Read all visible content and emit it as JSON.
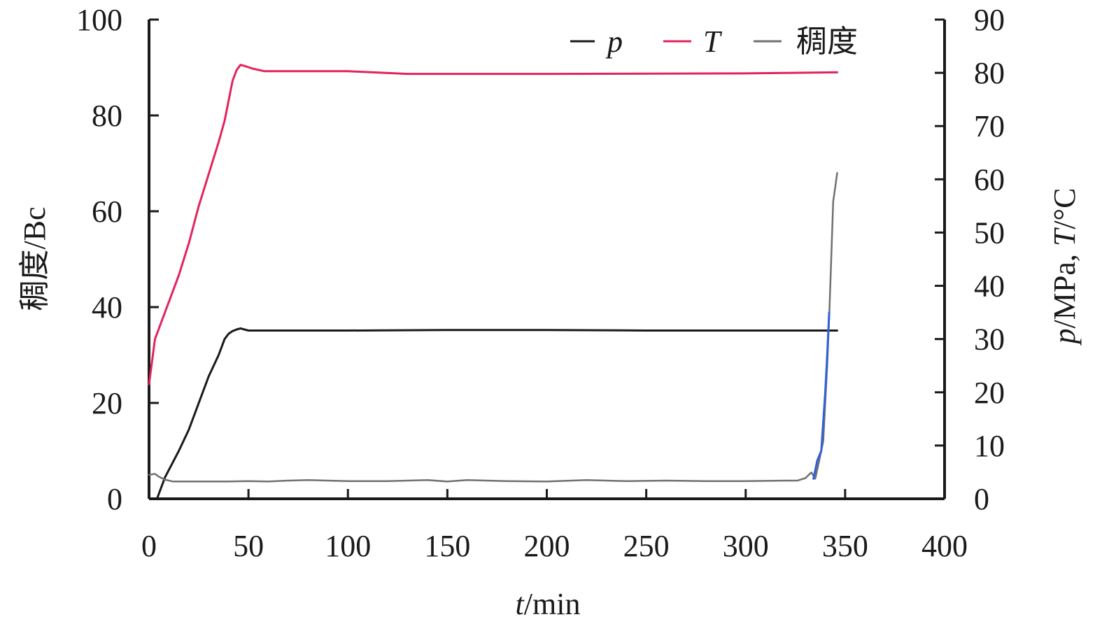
{
  "chart_data": {
    "type": "line",
    "title": "",
    "xlabel": {
      "italic": "t",
      "rest": "/min"
    },
    "ylabel_left": "稠度/Bc",
    "ylabel_right": {
      "p": "p",
      "mid": "/MPa, ",
      "T": "T",
      "rest": "/°C"
    },
    "xlim": [
      0,
      400
    ],
    "ylim_left": [
      0,
      100
    ],
    "ylim_right": [
      0,
      90
    ],
    "x_ticks": [
      0,
      50,
      100,
      150,
      200,
      250,
      300,
      350,
      400
    ],
    "x_tick_labels": [
      "0",
      "50",
      "100",
      "150",
      "200",
      "250",
      "300",
      "350",
      "400"
    ],
    "y_left_ticks": [
      0,
      20,
      40,
      60,
      80,
      100
    ],
    "y_left_tick_labels": [
      "0",
      "20",
      "40",
      "60",
      "80",
      "100"
    ],
    "y_right_ticks": [
      0,
      10,
      20,
      30,
      40,
      50,
      60,
      70,
      80,
      90
    ],
    "y_right_tick_labels": [
      "0",
      "10",
      "20",
      "30",
      "40",
      "50",
      "60",
      "70",
      "80",
      "90"
    ],
    "grid": false,
    "legend_position": "top-right",
    "series": [
      {
        "name": "p",
        "italic": true,
        "axis": "right",
        "color": "#1a1a1a",
        "x": [
          4,
          8,
          15,
          20,
          25,
          30,
          35,
          38,
          40,
          42,
          44,
          46,
          48,
          50,
          60,
          100,
          150,
          200,
          250,
          300,
          340,
          346
        ],
        "y": [
          0,
          4,
          9,
          13,
          18,
          23,
          27,
          30,
          31,
          31.5,
          31.8,
          32,
          31.8,
          31.6,
          31.6,
          31.6,
          31.7,
          31.7,
          31.6,
          31.6,
          31.6,
          31.6
        ]
      },
      {
        "name": "T",
        "italic": true,
        "axis": "right",
        "color": "#e2245c",
        "x": [
          0,
          3,
          10,
          15,
          20,
          25,
          30,
          35,
          38,
          42,
          44,
          46,
          48,
          52,
          58,
          100,
          130,
          200,
          300,
          346
        ],
        "y": [
          21.5,
          30,
          37,
          42,
          48,
          55,
          61,
          67,
          71,
          78.5,
          80.5,
          81.5,
          81.3,
          80.8,
          80.3,
          80.3,
          79.8,
          79.8,
          79.9,
          80.1
        ]
      },
      {
        "name": "稠度",
        "italic": false,
        "axis": "left",
        "color": "#707070",
        "x": [
          0,
          3,
          5,
          8,
          12,
          20,
          30,
          40,
          50,
          60,
          70,
          80,
          100,
          120,
          140,
          150,
          160,
          180,
          200,
          220,
          240,
          260,
          280,
          300,
          320,
          326,
          330,
          333,
          335,
          337,
          339,
          340,
          341,
          342,
          343,
          344,
          345,
          346
        ],
        "y": [
          5,
          5.2,
          4.6,
          4,
          3.6,
          3.6,
          3.6,
          3.6,
          3.7,
          3.6,
          3.8,
          3.9,
          3.7,
          3.7,
          3.9,
          3.6,
          3.9,
          3.7,
          3.6,
          3.9,
          3.7,
          3.8,
          3.7,
          3.7,
          3.8,
          3.8,
          4.3,
          5.5,
          4.2,
          8,
          12,
          20,
          28,
          38,
          50,
          62,
          65,
          68
        ]
      }
    ],
    "highlight_segment": {
      "color": "#2f62d6",
      "x": [
        334,
        336,
        338,
        340,
        341,
        342
      ],
      "y": [
        4,
        8,
        10,
        22,
        30,
        39
      ]
    }
  }
}
